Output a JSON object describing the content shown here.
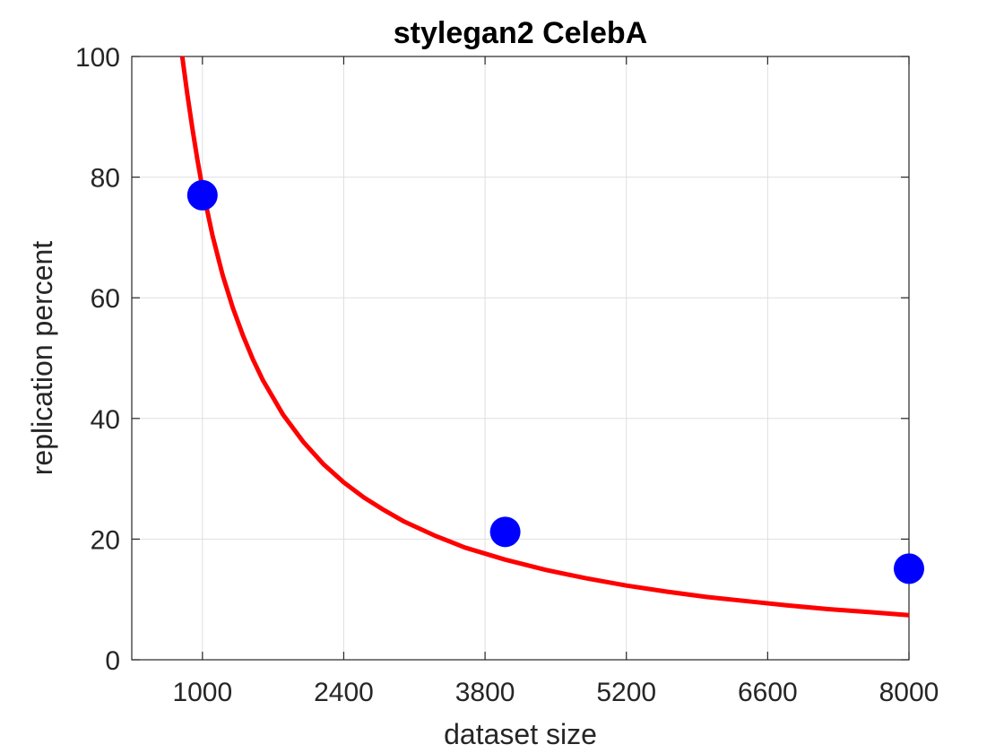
{
  "chart_data": {
    "type": "scatter",
    "title": "stylegan2 CelebA",
    "xlabel": "dataset size",
    "ylabel": "replication percent",
    "xlim": [
      300,
      8000
    ],
    "ylim": [
      0,
      100
    ],
    "xticks": [
      1000,
      2400,
      3800,
      5200,
      6600,
      8000
    ],
    "yticks": [
      0,
      20,
      40,
      60,
      80,
      100
    ],
    "grid": true,
    "series": [
      {
        "type": "scatter",
        "color": "#0000ff",
        "x": [
          1000,
          4000,
          8000
        ],
        "y": [
          77,
          21.2,
          15.1
        ]
      },
      {
        "type": "line",
        "color": "#ff0000",
        "x": [
          800,
          850,
          900,
          950,
          1000,
          1100,
          1200,
          1300,
          1400,
          1500,
          1600,
          1800,
          2000,
          2200,
          2400,
          2600,
          2800,
          3000,
          3300,
          3600,
          4000,
          4400,
          4800,
          5200,
          5600,
          6000,
          6400,
          6800,
          7200,
          7600,
          8000
        ],
        "y": [
          100,
          93.8,
          88.1,
          82.9,
          78.2,
          70.3,
          63.8,
          58.4,
          53.8,
          49.8,
          46.3,
          40.6,
          36.1,
          32.4,
          29.4,
          26.9,
          24.8,
          22.9,
          20.6,
          18.6,
          16.6,
          14.9,
          13.5,
          12.3,
          11.3,
          10.4,
          9.7,
          9.0,
          8.4,
          7.9,
          7.4
        ]
      }
    ]
  }
}
